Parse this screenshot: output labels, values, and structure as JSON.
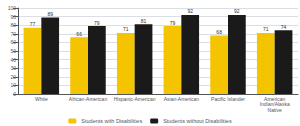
{
  "chart_data": {
    "type": "bar",
    "categories": [
      "White",
      "African-American",
      "Hispanic-American",
      "Asian-American",
      "Pacific Islander",
      "American\nIndian/Alaska\nNative"
    ],
    "series": [
      {
        "name": "Students with Disabilities",
        "color": "#F5C400",
        "values": [
          77,
          66,
          71,
          79,
          68,
          71
        ]
      },
      {
        "name": "Students without Disabilities",
        "color": "#1a1a1a",
        "values": [
          89,
          79,
          81,
          92,
          92,
          74
        ]
      }
    ],
    "ylim": [
      0,
      100
    ],
    "yticks": [
      0,
      10,
      20,
      30,
      40,
      50,
      60,
      70,
      80,
      90,
      100
    ],
    "grid": true,
    "legend": "bottom",
    "data_labels": true
  }
}
